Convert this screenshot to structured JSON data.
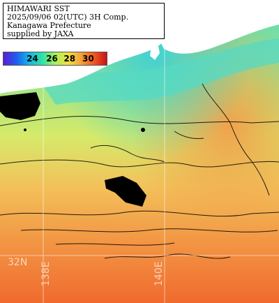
{
  "header": {
    "lines": [
      "HIMAWARI SST",
      "2025/09/06 02(UTC) 3H Comp.",
      "Kanagawa Prefecture",
      "supplied by JAXA"
    ]
  },
  "colorbar": {
    "ticks": [
      "24",
      "26",
      "28",
      "30"
    ],
    "colors": [
      "#5a1fd1",
      "#1f5cf0",
      "#13b9e8",
      "#2fe0a8",
      "#a8f05a",
      "#f0e040",
      "#f5a23a",
      "#ef5a22",
      "#c81414"
    ]
  },
  "grid": {
    "lat_label": "32N",
    "lon_labels": [
      "138E",
      "140E"
    ]
  },
  "legend_icon": "colorbar-icon"
}
